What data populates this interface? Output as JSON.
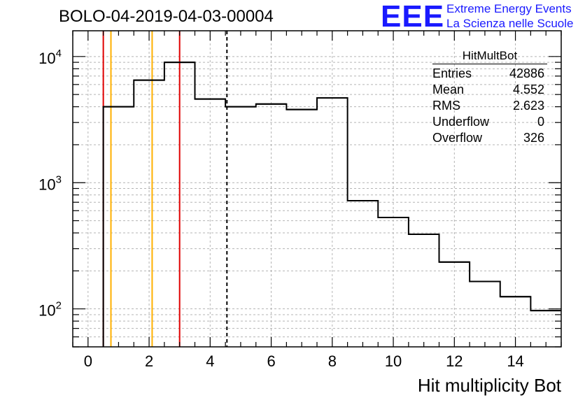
{
  "title": "BOLO-04-2019-04-03-00004",
  "logo": {
    "mark": "EEE",
    "line1": "Extreme Energy Events",
    "line2": "La Scienza nelle Scuole",
    "color": "#1a1aff"
  },
  "stats": {
    "name": "HitMultBot",
    "rows": [
      {
        "label": "Entries",
        "value": "42886"
      },
      {
        "label": "Mean",
        "value": "4.552"
      },
      {
        "label": "RMS",
        "value": "2.623"
      },
      {
        "label": "Underflow",
        "value": "0"
      },
      {
        "label": "Overflow",
        "value": "326"
      }
    ]
  },
  "chart_data": {
    "type": "histogram",
    "xlabel": "Hit multiplicity Bot",
    "ylabel": "",
    "xlim": [
      -0.5,
      15.5
    ],
    "ylim": [
      50,
      16000
    ],
    "yscale": "log",
    "grid": true,
    "xticks": [
      0,
      2,
      4,
      6,
      8,
      10,
      12,
      14
    ],
    "xtick_labels": [
      "0",
      "2",
      "4",
      "6",
      "8",
      "10",
      "12",
      "14"
    ],
    "yticks": [
      100,
      1000,
      10000
    ],
    "ytick_labels": [
      {
        "base": "10",
        "exp": "2"
      },
      {
        "base": "10",
        "exp": "3"
      },
      {
        "base": "10",
        "exp": "4"
      }
    ],
    "bin_edges": [
      0.5,
      1.5,
      2.5,
      3.5,
      4.5,
      5.5,
      6.5,
      7.5,
      8.5,
      9.5,
      10.5,
      11.5,
      12.5,
      13.5,
      14.5,
      15.5
    ],
    "values": [
      4000,
      6500,
      9000,
      4600,
      4000,
      4200,
      3800,
      4700,
      720,
      530,
      390,
      235,
      165,
      125,
      97
    ],
    "vertical_lines": [
      {
        "x": 0.5,
        "color": "#e00000",
        "style": "solid"
      },
      {
        "x": 0.75,
        "color": "#ffb000",
        "style": "solid"
      },
      {
        "x": 2.1,
        "color": "#ffb000",
        "style": "solid"
      },
      {
        "x": 3.0,
        "color": "#e00000",
        "style": "solid"
      },
      {
        "x": 4.55,
        "color": "#000000",
        "style": "dashed"
      }
    ]
  }
}
